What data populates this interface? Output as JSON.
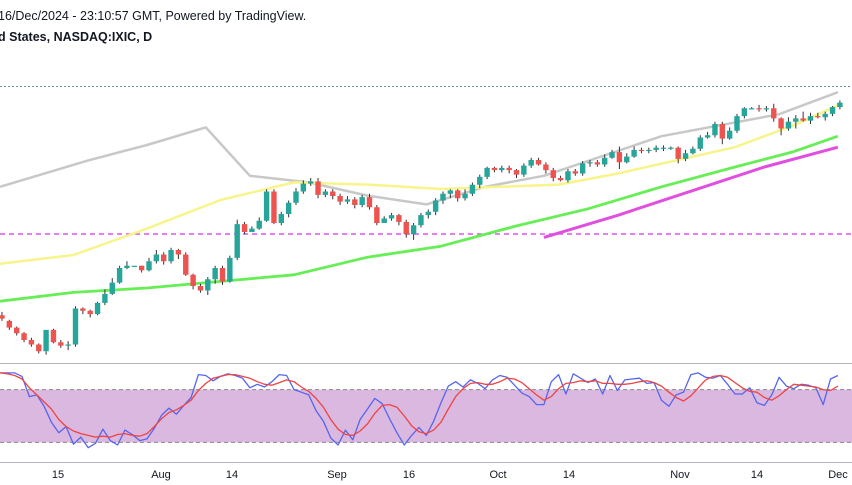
{
  "header": {
    "line1": "16/Dec/2024 - 23:10:57 GMT, Powered by TradingView.",
    "line2": "d States, NASDAQ:IXIC, D"
  },
  "colors": {
    "up": "#26a69a",
    "down": "#ef5350",
    "ma_grey": "#c8c8c8",
    "ma_yellow": "#f7f58a",
    "ma_green": "#66ee55",
    "ma_magenta": "#e04fe0",
    "level_line": "#dd55ee",
    "top_line": "#6c8ebf",
    "stoch_fill": "#dbb8e0",
    "stoch_k": "#5566ee",
    "stoch_d": "#ee4444"
  },
  "chart_data": [
    {
      "type": "candlestick",
      "x_tick_labels": [
        "15",
        "Aug",
        "14",
        "Sep",
        "16",
        "Oct",
        "14",
        "Nov",
        "14",
        "Dec"
      ],
      "candles": [
        [
          0,
          208,
          205,
          211,
          203
        ],
        [
          1,
          203,
          197,
          204,
          195
        ],
        [
          2,
          197,
          192,
          198,
          190
        ],
        [
          3,
          192,
          186,
          193,
          184
        ],
        [
          4,
          186,
          182,
          188,
          180
        ],
        [
          5,
          182,
          176,
          183,
          174
        ],
        [
          6,
          176,
          195,
          176,
          173
        ],
        [
          7,
          195,
          184,
          196,
          183
        ],
        [
          8,
          184,
          181,
          186,
          179
        ],
        [
          9,
          181,
          182,
          185,
          177
        ],
        [
          10,
          182,
          214,
          216,
          180
        ],
        [
          11,
          214,
          212,
          215,
          209
        ],
        [
          12,
          212,
          209,
          213,
          206
        ],
        [
          13,
          209,
          219,
          220,
          208
        ],
        [
          14,
          219,
          227,
          231,
          217
        ],
        [
          15,
          227,
          237,
          241,
          226
        ],
        [
          16,
          237,
          250,
          252,
          236
        ],
        [
          17,
          250,
          252,
          256,
          249
        ],
        [
          18,
          252,
          252,
          252,
          252
        ],
        [
          19,
          252,
          248,
          252,
          246
        ],
        [
          20,
          248,
          256,
          259,
          247
        ],
        [
          21,
          256,
          262,
          266,
          254
        ],
        [
          22,
          262,
          256,
          264,
          253
        ],
        [
          23,
          256,
          266,
          268,
          254
        ],
        [
          24,
          266,
          262,
          267,
          258
        ],
        [
          25,
          262,
          244,
          264,
          243
        ],
        [
          26,
          244,
          234,
          245,
          231
        ],
        [
          27,
          234,
          230,
          236,
          228
        ],
        [
          28,
          230,
          240,
          242,
          226
        ],
        [
          29,
          240,
          250,
          252,
          236
        ],
        [
          30,
          250,
          238,
          252,
          235
        ],
        [
          31,
          238,
          259,
          261,
          237
        ],
        [
          32,
          259,
          289,
          293,
          257
        ],
        [
          33,
          289,
          282,
          291,
          280
        ],
        [
          34,
          282,
          285,
          287,
          282
        ],
        [
          35,
          285,
          292,
          295,
          284
        ],
        [
          36,
          292,
          318,
          320,
          291
        ],
        [
          37,
          318,
          290,
          320,
          289
        ],
        [
          38,
          290,
          298,
          300,
          288
        ],
        [
          39,
          298,
          308,
          310,
          295
        ],
        [
          40,
          308,
          318,
          321,
          306
        ],
        [
          41,
          318,
          325,
          328,
          316
        ],
        [
          42,
          325,
          327,
          330,
          323
        ],
        [
          43,
          327,
          315,
          330,
          312
        ],
        [
          44,
          315,
          318,
          320,
          313
        ],
        [
          45,
          318,
          314,
          320,
          311
        ],
        [
          46,
          314,
          309,
          316,
          306
        ],
        [
          47,
          309,
          311,
          314,
          307
        ],
        [
          48,
          311,
          306,
          313,
          303
        ],
        [
          49,
          306,
          313,
          315,
          304
        ],
        [
          50,
          313,
          304,
          316,
          302
        ],
        [
          51,
          304,
          290,
          306,
          288
        ],
        [
          52,
          290,
          294,
          296,
          290
        ],
        [
          53,
          294,
          297,
          299,
          292
        ],
        [
          54,
          297,
          291,
          298,
          288
        ],
        [
          55,
          291,
          280,
          293,
          277
        ],
        [
          56,
          280,
          288,
          290,
          275
        ],
        [
          57,
          288,
          297,
          299,
          286
        ],
        [
          58,
          297,
          300,
          302,
          294
        ],
        [
          59,
          300,
          310,
          312,
          297
        ],
        [
          60,
          310,
          316,
          318,
          307
        ],
        [
          61,
          316,
          319,
          320,
          312
        ],
        [
          62,
          319,
          312,
          320,
          309
        ],
        [
          63,
          312,
          316,
          320,
          310
        ],
        [
          64,
          316,
          324,
          326,
          314
        ],
        [
          65,
          324,
          331,
          333,
          321
        ],
        [
          66,
          331,
          339,
          340,
          329
        ],
        [
          67,
          339,
          337,
          340,
          335
        ],
        [
          68,
          337,
          339,
          341,
          335
        ],
        [
          69,
          339,
          337,
          341,
          334
        ],
        [
          70,
          337,
          333,
          338,
          330
        ],
        [
          71,
          333,
          341,
          343,
          331
        ],
        [
          72,
          341,
          346,
          348,
          339
        ],
        [
          73,
          346,
          342,
          348,
          341
        ],
        [
          74,
          342,
          337,
          344,
          334
        ],
        [
          75,
          337,
          330,
          339,
          327
        ],
        [
          76,
          330,
          328,
          332,
          327
        ],
        [
          77,
          328,
          336,
          338,
          326
        ],
        [
          78,
          336,
          334,
          338,
          332
        ],
        [
          79,
          334,
          343,
          345,
          332
        ],
        [
          80,
          343,
          344,
          346,
          340
        ],
        [
          81,
          344,
          342,
          346,
          340
        ],
        [
          82,
          342,
          348,
          351,
          340
        ],
        [
          83,
          348,
          353,
          355,
          347
        ],
        [
          84,
          353,
          344,
          358,
          338
        ],
        [
          85,
          344,
          349,
          352,
          343
        ],
        [
          86,
          349,
          355,
          358,
          348
        ],
        [
          87,
          355,
          354,
          357,
          352
        ],
        [
          88,
          354,
          355,
          357,
          352
        ],
        [
          89,
          355,
          357,
          359,
          353
        ],
        [
          90,
          357,
          357,
          359,
          354
        ],
        [
          91,
          357,
          357,
          358,
          355
        ],
        [
          92,
          357,
          347,
          358,
          343
        ],
        [
          93,
          347,
          352,
          355,
          345
        ],
        [
          94,
          352,
          356,
          358,
          351
        ],
        [
          95,
          356,
          366,
          368,
          354
        ],
        [
          96,
          366,
          368,
          371,
          365
        ],
        [
          97,
          368,
          378,
          380,
          366
        ],
        [
          98,
          378,
          365,
          380,
          360
        ],
        [
          99,
          365,
          372,
          375,
          364
        ],
        [
          100,
          372,
          385,
          387,
          370
        ],
        [
          101,
          385,
          392,
          393,
          383
        ],
        [
          102,
          392,
          392,
          393,
          391
        ],
        [
          103,
          392,
          391,
          395,
          389
        ],
        [
          104,
          391,
          392,
          394,
          389
        ],
        [
          105,
          392,
          383,
          396,
          380
        ],
        [
          106,
          383,
          374,
          384,
          368
        ],
        [
          107,
          374,
          380,
          384,
          372
        ],
        [
          108,
          380,
          383,
          386,
          374
        ],
        [
          109,
          383,
          381,
          389,
          380
        ],
        [
          110,
          381,
          385,
          388,
          378
        ],
        [
          111,
          385,
          384,
          388,
          383
        ],
        [
          112,
          384,
          387,
          389,
          381
        ],
        [
          113,
          387,
          393,
          394,
          385
        ],
        [
          114,
          393,
          397,
          399,
          391
        ]
      ],
      "moving_averages": [
        {
          "name": "MA-grey",
          "points": [
            [
              0,
              0.56
            ],
            [
              12,
              0.68
            ],
            [
              20,
              0.75
            ],
            [
              28,
              0.83
            ],
            [
              34,
              0.61
            ],
            [
              42,
              0.58
            ],
            [
              50,
              0.52
            ],
            [
              58,
              0.48
            ],
            [
              66,
              0.56
            ],
            [
              74,
              0.61
            ],
            [
              82,
              0.7
            ],
            [
              90,
              0.79
            ],
            [
              98,
              0.84
            ],
            [
              106,
              0.89
            ],
            [
              114,
              0.99
            ]
          ]
        },
        {
          "name": "MA-yellow",
          "points": [
            [
              0,
              0.21
            ],
            [
              10,
              0.25
            ],
            [
              20,
              0.37
            ],
            [
              30,
              0.5
            ],
            [
              40,
              0.58
            ],
            [
              50,
              0.57
            ],
            [
              60,
              0.55
            ],
            [
              68,
              0.56
            ],
            [
              76,
              0.57
            ],
            [
              84,
              0.62
            ],
            [
              92,
              0.68
            ],
            [
              100,
              0.74
            ],
            [
              108,
              0.84
            ],
            [
              114,
              0.93
            ]
          ]
        },
        {
          "name": "MA-green",
          "points": [
            [
              0,
              0.04
            ],
            [
              10,
              0.08
            ],
            [
              20,
              0.1
            ],
            [
              30,
              0.13
            ],
            [
              40,
              0.16
            ],
            [
              50,
              0.24
            ],
            [
              60,
              0.29
            ],
            [
              70,
              0.38
            ],
            [
              80,
              0.46
            ],
            [
              90,
              0.56
            ],
            [
              100,
              0.65
            ],
            [
              108,
              0.72
            ],
            [
              114,
              0.79
            ]
          ]
        },
        {
          "name": "MA-magenta",
          "points": [
            [
              74,
              0.33
            ],
            [
              84,
              0.43
            ],
            [
              94,
              0.54
            ],
            [
              104,
              0.65
            ],
            [
              114,
              0.74
            ]
          ]
        }
      ],
      "ylim": [
        170,
        410
      ]
    },
    {
      "type": "line",
      "series": [
        {
          "name": "K",
          "values": [
            99,
            99,
            99,
            95,
            72,
            74,
            61,
            43,
            31,
            38,
            18,
            26,
            14,
            19,
            35,
            22,
            17,
            34,
            29,
            22,
            24,
            36,
            51,
            59,
            52,
            62,
            71,
            97,
            96,
            90,
            95,
            98,
            96,
            93,
            82,
            86,
            83,
            89,
            97,
            96,
            80,
            77,
            74,
            56,
            44,
            25,
            17,
            34,
            23,
            46,
            58,
            70,
            64,
            47,
            31,
            17,
            28,
            37,
            28,
            44,
            65,
            84,
            89,
            83,
            91,
            87,
            81,
            91,
            96,
            94,
            85,
            76,
            72,
            63,
            63,
            89,
            97,
            75,
            98,
            93,
            88,
            92,
            75,
            96,
            79,
            91,
            92,
            93,
            87,
            88,
            68,
            61,
            74,
            77,
            97,
            99,
            94,
            93,
            96,
            86,
            75,
            75,
            82,
            65,
            62,
            74,
            94,
            84,
            81,
            86,
            85,
            82,
            63,
            92,
            96
          ]
        },
        {
          "name": "D",
          "values": [
            99,
            98,
            96,
            92,
            82,
            74,
            66,
            58,
            46,
            38,
            33,
            30,
            28,
            26,
            27,
            26,
            29,
            30,
            28,
            27,
            30,
            38,
            47,
            54,
            57,
            62,
            68,
            79,
            87,
            93,
            95,
            97,
            97,
            95,
            93,
            89,
            86,
            85,
            88,
            91,
            89,
            83,
            78,
            70,
            60,
            46,
            35,
            29,
            28,
            33,
            41,
            53,
            62,
            63,
            60,
            50,
            39,
            32,
            30,
            34,
            43,
            58,
            72,
            81,
            87,
            88,
            86,
            86,
            89,
            93,
            92,
            88,
            81,
            74,
            68,
            72,
            81,
            87,
            88,
            90,
            89,
            90,
            87,
            87,
            86,
            86,
            87,
            89,
            90,
            88,
            84,
            77,
            71,
            67,
            73,
            82,
            91,
            95,
            96,
            94,
            88,
            82,
            78,
            77,
            71,
            68,
            73,
            80,
            86,
            85,
            84,
            83,
            80,
            79,
            84
          ]
        }
      ],
      "bands": [
        20,
        80
      ],
      "ylim": [
        0,
        100
      ]
    }
  ]
}
